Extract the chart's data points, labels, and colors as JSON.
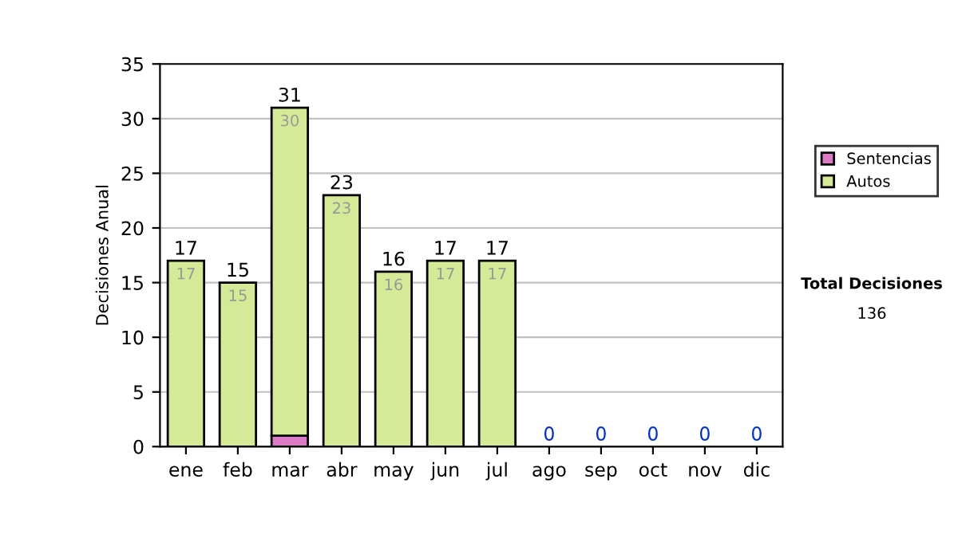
{
  "chart_data": {
    "type": "bar",
    "stacked": true,
    "ylabel": "Decisiones Anual",
    "categories": [
      "ene",
      "feb",
      "mar",
      "abr",
      "may",
      "jun",
      "jul",
      "ago",
      "sep",
      "oct",
      "nov",
      "dic"
    ],
    "series": [
      {
        "name": "Sentencias",
        "color": "#dc7ac8",
        "values": [
          0,
          0,
          1,
          0,
          0,
          0,
          0,
          0,
          0,
          0,
          0,
          0
        ]
      },
      {
        "name": "Autos",
        "color": "#d4ea96",
        "values": [
          17,
          15,
          30,
          23,
          16,
          17,
          17,
          0,
          0,
          0,
          0,
          0
        ],
        "value_labels": [
          "17",
          "15",
          "30",
          "23",
          "16",
          "17",
          "17",
          null,
          null,
          null,
          null,
          null
        ]
      }
    ],
    "totals": [
      "17",
      "15",
      "31",
      "23",
      "16",
      "17",
      "17",
      "0",
      "0",
      "0",
      "0",
      "0"
    ],
    "ylim": [
      0,
      35
    ],
    "yticks": [
      0,
      5,
      10,
      15,
      20,
      25,
      30,
      35
    ],
    "grid": "y",
    "legend": "right",
    "annotations": [
      "Total Decisiones",
      "136"
    ]
  }
}
